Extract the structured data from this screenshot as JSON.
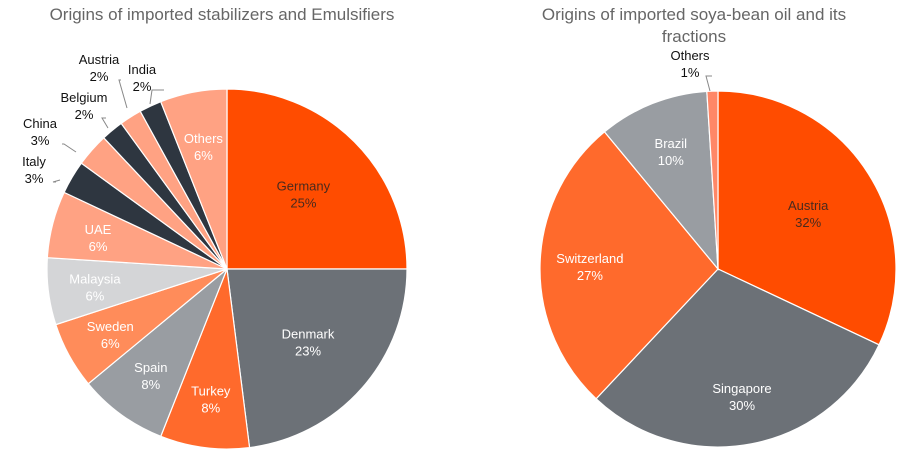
{
  "colors": {
    "red_orange": "#ff4c00",
    "dark_gray": "#6c7177",
    "orange": "#ff6a2c",
    "mid_gray": "#999da2",
    "salmon": "#ff8c5a",
    "light_gray": "#d4d5d7",
    "light_salmon": "#ffa283",
    "navy": "#2e3640",
    "pink_orange": "#ff8767"
  },
  "chart_data": [
    {
      "type": "pie",
      "title": "Origins of imported stabilizers and Emulsifiers",
      "slices": [
        {
          "name": "Germany",
          "value": 25,
          "label": "25%",
          "color": "#ff4c00",
          "text_color": "#4a2a1d"
        },
        {
          "name": "Denmark",
          "value": 23,
          "label": "23%",
          "color": "#6c7177",
          "text_color": "#ffffff"
        },
        {
          "name": "Turkey",
          "value": 8,
          "label": "8%",
          "color": "#ff6a2c",
          "text_color": "#ffffff"
        },
        {
          "name": "Spain",
          "value": 8,
          "label": "8%",
          "color": "#999da2",
          "text_color": "#ffffff"
        },
        {
          "name": "Sweden",
          "value": 6,
          "label": "6%",
          "color": "#ff8c5a",
          "text_color": "#ffffff"
        },
        {
          "name": "Malaysia",
          "value": 6,
          "label": "6%",
          "color": "#d4d5d7",
          "text_color": "#ffffff"
        },
        {
          "name": "UAE",
          "value": 6,
          "label": "6%",
          "color": "#ffa283",
          "text_color": "#ffffff"
        },
        {
          "name": "Italy",
          "value": 3,
          "label": "3%",
          "color": "#2e3640",
          "text_color": "#111111"
        },
        {
          "name": "China",
          "value": 3,
          "label": "3%",
          "color": "#ffa283",
          "text_color": "#111111"
        },
        {
          "name": "Belgium",
          "value": 2,
          "label": "2%",
          "color": "#2e3640",
          "text_color": "#111111"
        },
        {
          "name": "Austria",
          "value": 2,
          "label": "2%",
          "color": "#ffa283",
          "text_color": "#111111"
        },
        {
          "name": "India",
          "value": 2,
          "label": "2%",
          "color": "#2e3640",
          "text_color": "#111111"
        },
        {
          "name": "Others",
          "value": 6,
          "label": "6%",
          "color": "#ffa283",
          "text_color": "#ffffff"
        }
      ]
    },
    {
      "type": "pie",
      "title_lines": [
        "Origins of imported soya-bean oil and its",
        "fractions"
      ],
      "slices": [
        {
          "name": "Austria",
          "value": 32,
          "label": "32%",
          "color": "#ff4c00",
          "text_color": "#4a2a1d"
        },
        {
          "name": "Singapore",
          "value": 30,
          "label": "30%",
          "color": "#6c7177",
          "text_color": "#ffffff"
        },
        {
          "name": "Switzerland",
          "value": 27,
          "label": "27%",
          "color": "#ff6a2c",
          "text_color": "#ffffff"
        },
        {
          "name": "Brazil",
          "value": 10,
          "label": "10%",
          "color": "#999da2",
          "text_color": "#ffffff"
        },
        {
          "name": "Others",
          "value": 1,
          "label": "1%",
          "color": "#ff8767",
          "text_color": "#111111"
        }
      ]
    }
  ]
}
